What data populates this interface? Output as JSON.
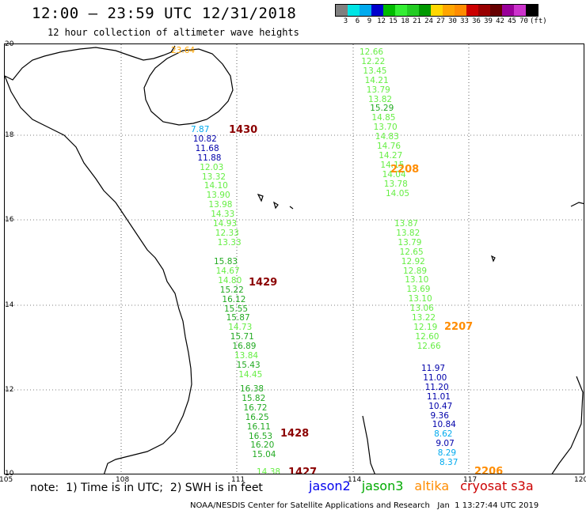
{
  "header": {
    "title": "12:00 – 23:59 UTC 12/31/2018",
    "subtitle": "12 hour collection of altimeter wave heights"
  },
  "colorbar": {
    "colors": [
      "#808080",
      "#00e5e5",
      "#00aaee",
      "#0000cc",
      "#00bb00",
      "#33ee33",
      "#22cc22",
      "#009900",
      "#ffd700",
      "#ffa500",
      "#ff8c00",
      "#cc0000",
      "#990000",
      "#660000",
      "#990099",
      "#cc33cc",
      "#000000"
    ],
    "labels": [
      "3",
      "6",
      "9",
      "12",
      "15",
      "18",
      "21",
      "24",
      "27",
      "30",
      "33",
      "36",
      "39",
      "42",
      "45",
      "70",
      "(ft)"
    ]
  },
  "map": {
    "lat_labels": [
      "20",
      "18",
      "16",
      "14",
      "12",
      "10"
    ],
    "lon_labels": [
      "105",
      "108",
      "111",
      "114",
      "117",
      "120"
    ]
  },
  "passes": [
    {
      "id": "pass-1430",
      "time": "1430",
      "color": "#8b0000",
      "points": [
        {
          "v": "7.87",
          "c": "#00aaee"
        },
        {
          "v": "10.82",
          "c": "#0000aa"
        },
        {
          "v": "11.68",
          "c": "#0000aa"
        },
        {
          "v": "11.88",
          "c": "#0000aa"
        },
        {
          "v": "12.03",
          "c": "#66ee44"
        },
        {
          "v": "13.32",
          "c": "#66ee44"
        },
        {
          "v": "14.10",
          "c": "#66ee44"
        },
        {
          "v": "13.90",
          "c": "#66ee44"
        },
        {
          "v": "13.98",
          "c": "#66ee44"
        },
        {
          "v": "14.33",
          "c": "#66ee44"
        },
        {
          "v": "14.93",
          "c": "#66ee44"
        },
        {
          "v": "12.33",
          "c": "#66ee44"
        },
        {
          "v": "13.33",
          "c": "#66ee44"
        }
      ]
    },
    {
      "id": "pass-1429",
      "time": "1429",
      "color": "#8b0000",
      "points": [
        {
          "v": "15.83",
          "c": "#22aa22"
        },
        {
          "v": "14.67",
          "c": "#66ee44"
        },
        {
          "v": "14.80",
          "c": "#66ee44"
        },
        {
          "v": "15.22",
          "c": "#22aa22"
        },
        {
          "v": "16.12",
          "c": "#22aa22"
        },
        {
          "v": "15.55",
          "c": "#22aa22"
        },
        {
          "v": "15.87",
          "c": "#22aa22"
        },
        {
          "v": "14.73",
          "c": "#66ee44"
        },
        {
          "v": "15.71",
          "c": "#22aa22"
        },
        {
          "v": "16.89",
          "c": "#22aa22"
        },
        {
          "v": "13.84",
          "c": "#66ee44"
        },
        {
          "v": "15.43",
          "c": "#22aa22"
        },
        {
          "v": "14.45",
          "c": "#66ee44"
        }
      ]
    },
    {
      "id": "pass-1428",
      "time": "1428",
      "color": "#8b0000",
      "points": [
        {
          "v": "16.38",
          "c": "#22aa22"
        },
        {
          "v": "15.82",
          "c": "#22aa22"
        },
        {
          "v": "16.72",
          "c": "#22aa22"
        },
        {
          "v": "16.25",
          "c": "#22aa22"
        },
        {
          "v": "16.11",
          "c": "#22aa22"
        },
        {
          "v": "16.53",
          "c": "#22aa22"
        },
        {
          "v": "16.20",
          "c": "#22aa22"
        },
        {
          "v": "15.04",
          "c": "#22aa22"
        }
      ]
    },
    {
      "id": "pass-1427",
      "time": "1427",
      "color": "#8b0000",
      "points": [
        {
          "v": "14.38",
          "c": "#66ee44"
        }
      ]
    },
    {
      "id": "pass-2208",
      "time": "2208",
      "color": "#ff8c00",
      "points": [
        {
          "v": "12.66",
          "c": "#66ee44"
        },
        {
          "v": "12.22",
          "c": "#66ee44"
        },
        {
          "v": "13.45",
          "c": "#66ee44"
        },
        {
          "v": "14.21",
          "c": "#66ee44"
        },
        {
          "v": "13.79",
          "c": "#66ee44"
        },
        {
          "v": "13.82",
          "c": "#66ee44"
        },
        {
          "v": "15.29",
          "c": "#22aa22"
        },
        {
          "v": "14.85",
          "c": "#66ee44"
        },
        {
          "v": "13.70",
          "c": "#66ee44"
        },
        {
          "v": "14.83",
          "c": "#66ee44"
        },
        {
          "v": "14.76",
          "c": "#66ee44"
        },
        {
          "v": "14.27",
          "c": "#66ee44"
        },
        {
          "v": "14.15",
          "c": "#66ee44"
        },
        {
          "v": "14.04",
          "c": "#66ee44"
        },
        {
          "v": "13.78",
          "c": "#66ee44"
        },
        {
          "v": "14.05",
          "c": "#66ee44"
        }
      ]
    },
    {
      "id": "pass-2207",
      "time": "2207",
      "color": "#ff8c00",
      "points": [
        {
          "v": "13.87",
          "c": "#66ee44"
        },
        {
          "v": "13.82",
          "c": "#66ee44"
        },
        {
          "v": "13.79",
          "c": "#66ee44"
        },
        {
          "v": "12.65",
          "c": "#66ee44"
        },
        {
          "v": "12.92",
          "c": "#66ee44"
        },
        {
          "v": "12.89",
          "c": "#66ee44"
        },
        {
          "v": "13.10",
          "c": "#66ee44"
        },
        {
          "v": "13.69",
          "c": "#66ee44"
        },
        {
          "v": "13.10",
          "c": "#66ee44"
        },
        {
          "v": "13.06",
          "c": "#66ee44"
        },
        {
          "v": "13.22",
          "c": "#66ee44"
        },
        {
          "v": "12.19",
          "c": "#66ee44"
        },
        {
          "v": "12.60",
          "c": "#66ee44"
        },
        {
          "v": "12.66",
          "c": "#66ee44"
        }
      ]
    },
    {
      "id": "pass-2206",
      "time": "2206",
      "color": "#ff8c00",
      "points": [
        {
          "v": "11.97",
          "c": "#0000aa"
        },
        {
          "v": "11.00",
          "c": "#0000aa"
        },
        {
          "v": "11.20",
          "c": "#0000aa"
        },
        {
          "v": "11.01",
          "c": "#0000aa"
        },
        {
          "v": "10.47",
          "c": "#0000aa"
        },
        {
          "v": "9.36",
          "c": "#0000aa"
        },
        {
          "v": "10.84",
          "c": "#0000aa"
        },
        {
          "v": "8.62",
          "c": "#00aaee"
        },
        {
          "v": "9.07",
          "c": "#0000aa"
        },
        {
          "v": "8.29",
          "c": "#00aaee"
        },
        {
          "v": "8.37",
          "c": "#00aaee"
        }
      ]
    }
  ],
  "island_label": {
    "v": "23.64",
    "c": "#ffa500"
  },
  "note": "note:  1) Time is in UTC;  2) SWH is in feet",
  "satellites": [
    {
      "name": "jason2",
      "color": "#0000ee"
    },
    {
      "name": "jason3",
      "color": "#00aa00"
    },
    {
      "name": "altika",
      "color": "#ff8c00"
    },
    {
      "name": "cryosat s3a",
      "color": "#cc0000"
    }
  ],
  "footer": {
    "credit": "NOAA/NESDIS Center for Satellite Applications and Research",
    "timestamp": "Jan  1 13:27:44 UTC 2019"
  }
}
